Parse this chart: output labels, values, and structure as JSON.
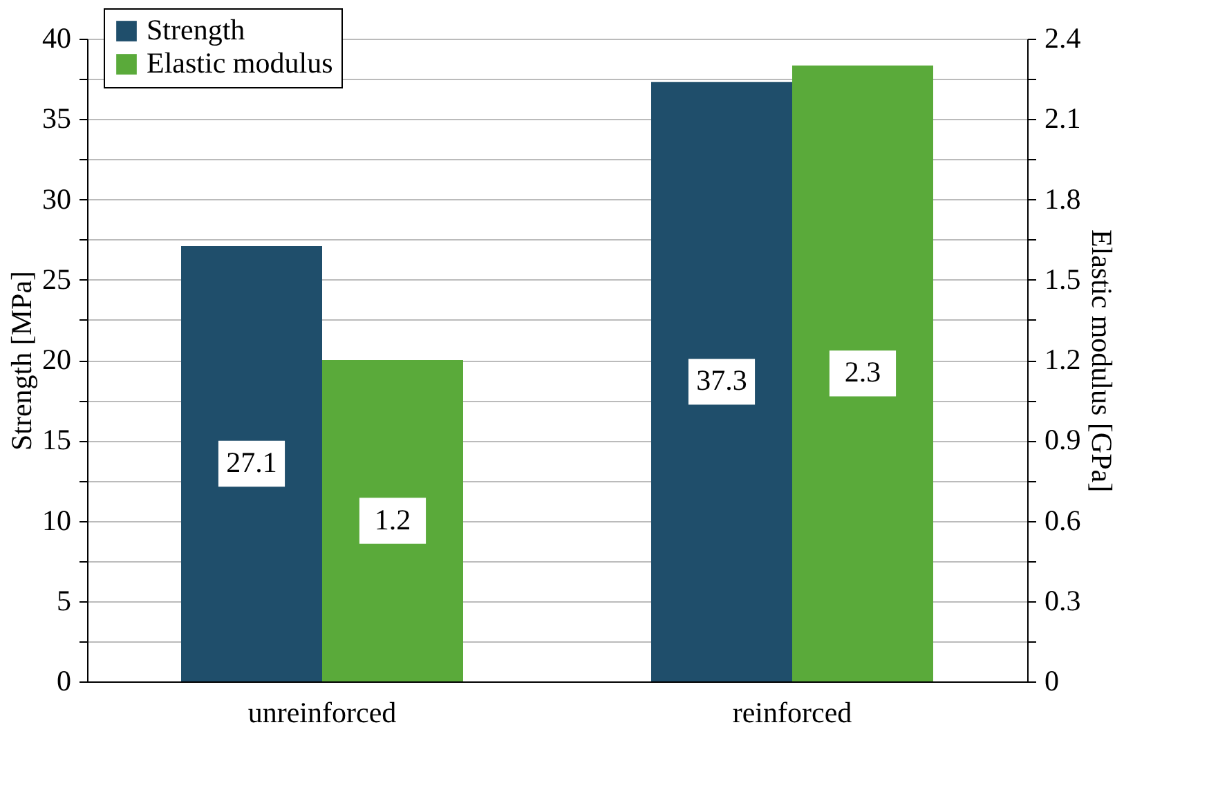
{
  "chart_data": {
    "type": "bar",
    "categories": [
      "unreinforced",
      "reinforced"
    ],
    "series": [
      {
        "name": "Strength",
        "color": "#1f4e6b",
        "values": [
          27.1,
          37.3
        ]
      },
      {
        "name": "Elastic modulus",
        "color": "#5aaa3a",
        "values": [
          1.2,
          2.3
        ],
        "axis": "y2"
      }
    ],
    "ylabel": "Strength [MPa]",
    "y2label": "Elastic modulus [GPa]",
    "ylim": [
      0,
      40
    ],
    "yticks": [
      0,
      {
        "value": 2.5,
        "label": null
      },
      5,
      {
        "value": 7.5,
        "label": null
      },
      10,
      {
        "value": 12.5,
        "label": null
      },
      15,
      {
        "value": 17.5,
        "label": null
      },
      20,
      {
        "value": 22.5,
        "label": null
      },
      25,
      {
        "value": 27.5,
        "label": null
      },
      30,
      {
        "value": 32.5,
        "label": null
      },
      35,
      {
        "value": 37.5,
        "label": null
      },
      40
    ],
    "y2lim": [
      0,
      2.4
    ],
    "y2ticks": [
      0,
      {
        "value": 0.15,
        "label": null
      },
      0.3,
      {
        "value": 0.45,
        "label": null
      },
      0.6,
      {
        "value": 0.75,
        "label": null
      },
      0.9,
      {
        "value": 1.05,
        "label": null
      },
      1.2,
      {
        "value": 1.35,
        "label": null
      },
      1.5,
      {
        "value": 1.65,
        "label": null
      },
      1.8,
      {
        "value": 1.95,
        "label": null
      },
      2.1,
      {
        "value": 2.25,
        "label": null
      },
      2.4
    ],
    "grid": "y",
    "legend": "top left",
    "data_labels": true
  }
}
